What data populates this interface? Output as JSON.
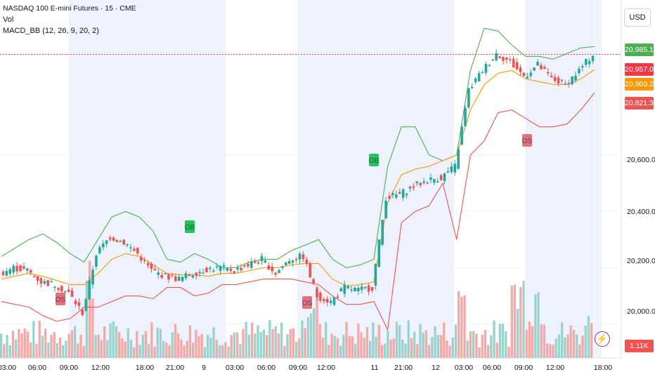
{
  "legend": {
    "symbol": "NASDAQ 100 E-mini Futures · 15 · CME",
    "vol": "Vol",
    "indicator": "MACD_BB (12, 26, 9, 20, 2)"
  },
  "currency": "USD",
  "price_labels": [
    {
      "value": "20,985.19",
      "color": "#4caf50"
    },
    {
      "value": "20,957.00",
      "color": "#f23645"
    },
    {
      "value": "20,903.25",
      "color": "#ff9800"
    },
    {
      "value": "20,821.31",
      "color": "#ef5350"
    }
  ],
  "price_axis_ticks": [
    "20,600.00",
    "20,400.00",
    "20,200.00",
    "20,000.00"
  ],
  "volume_label": {
    "value": "1.11K",
    "color": "#ef5350"
  },
  "time_axis_ticks": [
    "03:00",
    "06:00",
    "09:00",
    "12:00",
    "18:00",
    "21:00",
    "9",
    "03:00",
    "06:00",
    "09:00",
    "12:00",
    "11",
    "21:00",
    "12",
    "03:00",
    "06:00",
    "09:00",
    "12:00",
    "18:00"
  ],
  "signal_tags": [
    {
      "text": "OS",
      "color": "#e57373"
    },
    {
      "text": "OB",
      "color": "#22c55e"
    },
    {
      "text": "OS",
      "color": "#e57373"
    },
    {
      "text": "OB",
      "color": "#22c55e"
    },
    {
      "text": "OS",
      "color": "#e57373"
    }
  ],
  "chart_data": {
    "type": "line",
    "title": "NASDAQ 100 E-mini Futures · 15 · CME",
    "ylim": [
      19880,
      21150
    ],
    "last_price": 20957.0,
    "series": [
      {
        "name": "MACD_BB upper band",
        "color": "#4caf50",
        "values": [
          20240,
          20270,
          20300,
          20320,
          20290,
          20250,
          20220,
          20300,
          20380,
          20400,
          20380,
          20330,
          20230,
          20220,
          20250,
          20230,
          20200,
          20200,
          20220,
          20230,
          20230,
          20260,
          20280,
          20300,
          20230,
          20200,
          20210,
          20230,
          20560,
          20700,
          20700,
          20600,
          20580,
          20600,
          20900,
          21050,
          21040,
          20990,
          20950,
          20950,
          20940,
          20960,
          20980,
          20985
        ]
      },
      {
        "name": "MACD_BB basis",
        "color": "#ff9800",
        "values": [
          20160,
          20170,
          20180,
          20170,
          20155,
          20140,
          20140,
          20180,
          20230,
          20250,
          20240,
          20210,
          20180,
          20175,
          20175,
          20170,
          20180,
          20180,
          20190,
          20200,
          20200,
          20210,
          20215,
          20215,
          20160,
          20135,
          20140,
          20150,
          20430,
          20530,
          20550,
          20560,
          20580,
          20600,
          20760,
          20850,
          20890,
          20900,
          20870,
          20860,
          20850,
          20850,
          20870,
          20903
        ]
      },
      {
        "name": "MACD_BB lower band",
        "color": "#ef5350",
        "values": [
          20080,
          20070,
          20060,
          20030,
          20010,
          20020,
          20060,
          20060,
          20080,
          20100,
          20100,
          20090,
          20130,
          20130,
          20100,
          20110,
          20140,
          20140,
          20150,
          20160,
          20160,
          20160,
          20150,
          20140,
          20100,
          20070,
          20070,
          20080,
          19980,
          20360,
          20400,
          20420,
          20500,
          20300,
          20600,
          20650,
          20750,
          20760,
          20730,
          20700,
          20700,
          20710,
          20760,
          20821
        ]
      },
      {
        "name": "Close",
        "color": "#26a69a",
        "values": [
          20180,
          20200,
          20190,
          20150,
          20140,
          20110,
          20040,
          20250,
          20310,
          20290,
          20250,
          20190,
          20170,
          20160,
          20180,
          20195,
          20200,
          20190,
          20210,
          20230,
          20180,
          20230,
          20240,
          20100,
          20080,
          20130,
          20120,
          20130,
          20450,
          20460,
          20490,
          20510,
          20520,
          20560,
          20830,
          20900,
          20960,
          20930,
          20880,
          20920,
          20870,
          20850,
          20900,
          20957
        ]
      }
    ]
  }
}
